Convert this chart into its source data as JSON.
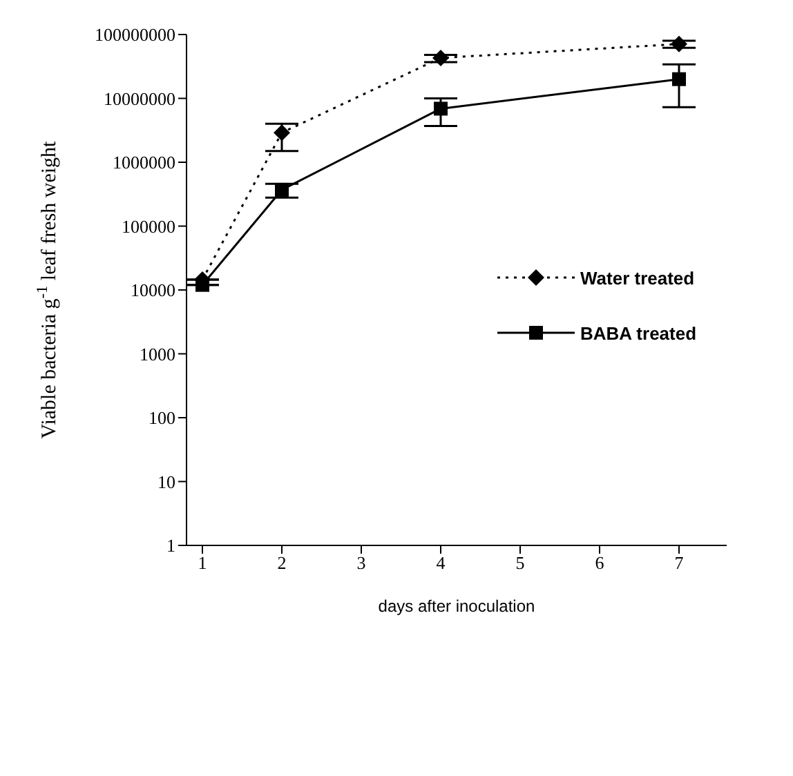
{
  "chart_data": {
    "type": "line",
    "xlabel": "days after inoculation",
    "ylabel": "Viable bacteria g$^{-1}$ leaf fresh weight",
    "x": [
      1,
      2,
      4,
      7
    ],
    "series": [
      {
        "name": "Water treated",
        "color": "#000000",
        "marker": "diamond",
        "line_style": "dotted",
        "values": [
          14500,
          2900000,
          43000000,
          71000000
        ],
        "errors": [
          null,
          [
            1500000,
            4000000
          ],
          [
            37000000,
            48000000
          ],
          [
            62000000,
            80000000
          ]
        ]
      },
      {
        "name": "BABA treated",
        "color": "#000000",
        "marker": "square",
        "line_style": "solid",
        "values": [
          12000,
          370000,
          6900000,
          20000000
        ],
        "errors": [
          null,
          [
            280000,
            460000
          ],
          [
            3700000,
            10000000
          ],
          [
            7300000,
            34000000
          ]
        ]
      }
    ],
    "log": "y",
    "xlim": [
      0.8,
      7.6
    ],
    "xticks": [
      1,
      2,
      3,
      4,
      5,
      6,
      7
    ],
    "ylim": [
      1,
      100000000
    ],
    "yticks": [
      1,
      10,
      100,
      1000,
      10000,
      100000,
      1000000,
      10000000,
      100000000
    ],
    "legend": "right"
  }
}
